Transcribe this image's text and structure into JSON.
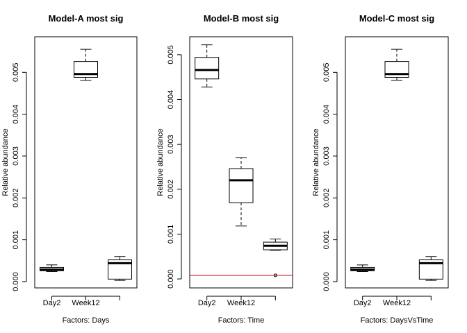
{
  "chart_data": [
    {
      "type": "boxplot",
      "title": "Model-A most sig",
      "xlabel": "Factors: Days",
      "ylabel": "Relative abundance",
      "ylim": [
        -0.00015,
        0.00585
      ],
      "yticks": [
        0.0,
        0.001,
        0.002,
        0.003,
        0.004,
        0.005
      ],
      "ytick_labels": [
        "0.000",
        "0.001",
        "0.002",
        "0.003",
        "0.004",
        "0.005"
      ],
      "categories": [
        "Day2",
        "Week12",
        ""
      ],
      "boxes": [
        {
          "min": 0.00024,
          "q1": 0.00026,
          "median": 0.00029,
          "q3": 0.00034,
          "max": 0.0004,
          "outliers": []
        },
        {
          "min": 0.00481,
          "q1": 0.00488,
          "median": 0.00496,
          "q3": 0.00526,
          "max": 0.00555,
          "outliers": []
        },
        {
          "min": 3e-05,
          "q1": 6e-05,
          "median": 0.00044,
          "q3": 0.00052,
          "max": 0.0006,
          "outliers": []
        }
      ],
      "hline": null
    },
    {
      "type": "boxplot",
      "title": "Model-B most sig",
      "xlabel": "Factors: Time",
      "ylabel": "Relative abundance",
      "ylim": [
        -0.0002,
        0.0054
      ],
      "yticks": [
        0.0,
        0.001,
        0.002,
        0.003,
        0.004,
        0.005
      ],
      "ytick_labels": [
        "0.000",
        "0.001",
        "0.002",
        "0.003",
        "0.004",
        "0.005"
      ],
      "categories": [
        "Day2",
        "Week12",
        ""
      ],
      "boxes": [
        {
          "min": 0.00428,
          "q1": 0.00446,
          "median": 0.00466,
          "q3": 0.00494,
          "max": 0.00522,
          "outliers": []
        },
        {
          "min": 0.00118,
          "q1": 0.0017,
          "median": 0.0022,
          "q3": 0.00246,
          "max": 0.0027,
          "outliers": []
        },
        {
          "min": 0.00064,
          "q1": 0.00065,
          "median": 0.00074,
          "q3": 0.00082,
          "max": 0.00089,
          "outliers": [
            8e-05
          ]
        }
      ],
      "hline": {
        "y": 8e-05,
        "color": "#cc0000"
      }
    },
    {
      "type": "boxplot",
      "title": "Model-C most sig",
      "xlabel": "Factors: DaysVsTime",
      "ylabel": "Relative abundance",
      "ylim": [
        -0.00015,
        0.00585
      ],
      "yticks": [
        0.0,
        0.001,
        0.002,
        0.003,
        0.004,
        0.005
      ],
      "ytick_labels": [
        "0.000",
        "0.001",
        "0.002",
        "0.003",
        "0.004",
        "0.005"
      ],
      "categories": [
        "Day2",
        "Week12",
        ""
      ],
      "boxes": [
        {
          "min": 0.00024,
          "q1": 0.00026,
          "median": 0.00029,
          "q3": 0.00034,
          "max": 0.0004,
          "outliers": []
        },
        {
          "min": 0.00481,
          "q1": 0.00488,
          "median": 0.00496,
          "q3": 0.00526,
          "max": 0.00555,
          "outliers": []
        },
        {
          "min": 3e-05,
          "q1": 6e-05,
          "median": 0.00044,
          "q3": 0.00052,
          "max": 0.0006,
          "outliers": []
        }
      ],
      "hline": null
    }
  ]
}
